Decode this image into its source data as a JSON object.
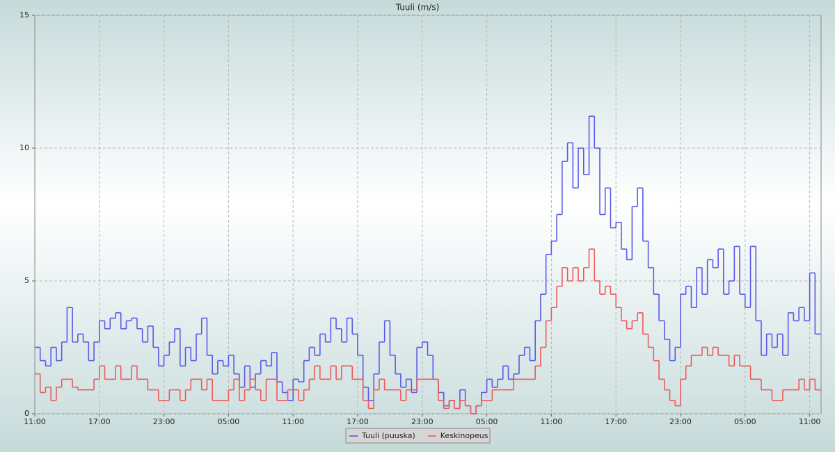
{
  "chart_data": {
    "type": "line",
    "step": true,
    "title": "Tuuli (m/s)",
    "categories": [
      "11:00",
      null,
      null,
      null,
      null,
      null,
      null,
      null,
      null,
      null,
      null,
      null,
      "17:00",
      null,
      null,
      null,
      null,
      null,
      null,
      null,
      null,
      null,
      null,
      null,
      "23:00",
      null,
      null,
      null,
      null,
      null,
      null,
      null,
      null,
      null,
      null,
      null,
      "05:00",
      null,
      null,
      null,
      null,
      null,
      null,
      null,
      null,
      null,
      null,
      null,
      "11:00",
      null,
      null,
      null,
      null,
      null,
      null,
      null,
      null,
      null,
      null,
      null,
      "17:00",
      null,
      null,
      null,
      null,
      null,
      null,
      null,
      null,
      null,
      null,
      null,
      "23:00",
      null,
      null,
      null,
      null,
      null,
      null,
      null,
      null,
      null,
      null,
      null,
      "05:00",
      null,
      null,
      null,
      null,
      null,
      null,
      null,
      null,
      null,
      null,
      null,
      "11:00",
      null,
      null,
      null,
      null,
      null,
      null,
      null,
      null,
      null,
      null,
      null,
      "17:00",
      null,
      null,
      null,
      null,
      null,
      null,
      null,
      null,
      null,
      null,
      null,
      "23:00",
      null,
      null,
      null,
      null,
      null,
      null,
      null,
      null,
      null,
      null,
      null,
      "05:00",
      null,
      null,
      null,
      null,
      null,
      null,
      null,
      null,
      null,
      null,
      null,
      "11:00",
      null,
      null
    ],
    "series": [
      {
        "name": "Tuuli (puuska)",
        "color": "#5a5ae8",
        "values": [
          2.5,
          2.0,
          1.8,
          2.5,
          2.0,
          2.7,
          4.0,
          2.7,
          3.0,
          2.7,
          2.0,
          2.7,
          3.5,
          3.2,
          3.6,
          3.8,
          3.2,
          3.5,
          3.6,
          3.2,
          2.7,
          3.3,
          2.5,
          1.8,
          2.2,
          2.7,
          3.2,
          1.8,
          2.5,
          2.0,
          3.0,
          3.6,
          2.2,
          1.5,
          2.0,
          1.8,
          2.2,
          1.5,
          1.0,
          1.8,
          1.0,
          1.5,
          2.0,
          1.8,
          2.3,
          1.2,
          0.8,
          0.5,
          1.3,
          1.2,
          2.0,
          2.5,
          2.2,
          3.0,
          2.7,
          3.6,
          3.2,
          2.7,
          3.6,
          3.0,
          2.2,
          1.0,
          0.5,
          1.5,
          2.7,
          3.5,
          2.2,
          1.5,
          1.0,
          1.3,
          0.8,
          2.5,
          2.7,
          2.2,
          1.3,
          0.8,
          0.3,
          0.5,
          0.2,
          0.9,
          0.3,
          0.0,
          0.3,
          0.8,
          1.3,
          1.0,
          1.3,
          1.8,
          1.3,
          1.5,
          2.2,
          2.5,
          2.0,
          3.5,
          4.5,
          6.0,
          6.5,
          7.5,
          9.5,
          10.2,
          8.5,
          10.0,
          9.0,
          11.2,
          10.0,
          7.5,
          8.5,
          7.0,
          7.2,
          6.2,
          5.8,
          7.8,
          8.5,
          6.5,
          5.5,
          4.5,
          3.5,
          2.8,
          2.0,
          2.5,
          4.5,
          4.8,
          4.0,
          5.5,
          4.5,
          5.8,
          5.5,
          6.2,
          4.5,
          5.0,
          6.3,
          4.5,
          4.0,
          6.3,
          3.5,
          2.2,
          3.0,
          2.5,
          3.0,
          2.2,
          3.8,
          3.5,
          4.0,
          3.5,
          5.3,
          3.0,
          3.0
        ]
      },
      {
        "name": "Keskinopeus",
        "color": "#ee5a5a",
        "values": [
          1.5,
          0.8,
          1.0,
          0.5,
          1.0,
          1.3,
          1.3,
          1.0,
          0.9,
          0.9,
          0.9,
          1.3,
          1.8,
          1.3,
          1.3,
          1.8,
          1.3,
          1.3,
          1.8,
          1.3,
          1.3,
          0.9,
          0.9,
          0.5,
          0.5,
          0.9,
          0.9,
          0.5,
          0.9,
          1.3,
          1.3,
          0.9,
          1.3,
          0.5,
          0.5,
          0.5,
          0.9,
          1.3,
          0.5,
          0.9,
          1.3,
          0.9,
          0.5,
          1.3,
          1.3,
          0.5,
          0.5,
          0.9,
          0.9,
          0.5,
          0.9,
          1.3,
          1.8,
          1.3,
          1.3,
          1.8,
          1.3,
          1.8,
          1.8,
          1.3,
          1.3,
          0.5,
          0.2,
          0.9,
          1.3,
          0.9,
          0.9,
          0.9,
          0.5,
          0.9,
          0.9,
          1.3,
          1.3,
          1.3,
          1.3,
          0.5,
          0.2,
          0.5,
          0.2,
          0.5,
          0.3,
          0.0,
          0.3,
          0.5,
          0.5,
          0.9,
          0.9,
          0.9,
          0.9,
          1.3,
          1.3,
          1.3,
          1.3,
          1.8,
          2.5,
          3.5,
          4.0,
          4.8,
          5.5,
          5.0,
          5.5,
          5.0,
          5.5,
          6.2,
          5.0,
          4.5,
          4.8,
          4.5,
          4.0,
          3.5,
          3.2,
          3.5,
          3.8,
          3.0,
          2.5,
          2.0,
          1.3,
          0.9,
          0.5,
          0.3,
          1.3,
          1.8,
          2.2,
          2.2,
          2.5,
          2.2,
          2.5,
          2.2,
          2.2,
          1.8,
          2.2,
          1.8,
          1.8,
          1.3,
          1.3,
          0.9,
          0.9,
          0.5,
          0.5,
          0.9,
          0.9,
          0.9,
          1.3,
          0.9,
          1.3,
          0.9,
          0.9
        ]
      }
    ],
    "ylim": [
      0,
      15
    ],
    "yticks": [
      0,
      5,
      10,
      15
    ],
    "grid": true,
    "legend": "bottom"
  }
}
